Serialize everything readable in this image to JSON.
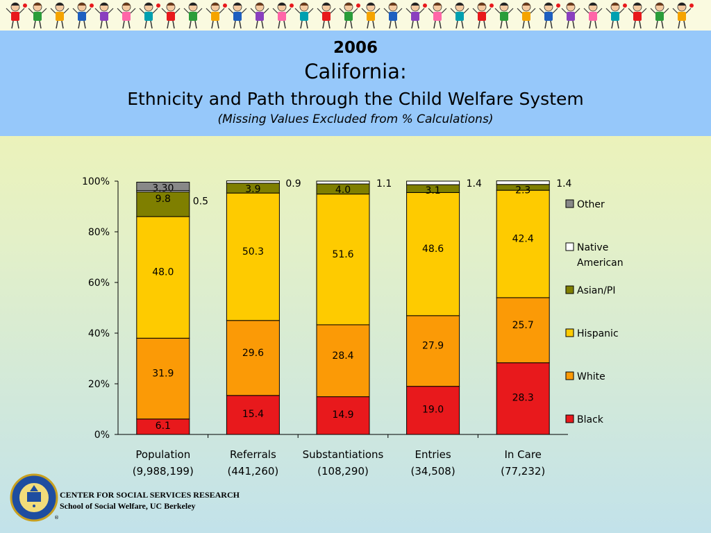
{
  "header": {
    "year": "2006",
    "state": "California:",
    "title": "Ethnicity and Path through the Child Welfare System",
    "subtitle": "(Missing Values Excluded from % Calculations)"
  },
  "chart_data": {
    "type": "bar",
    "stacked": true,
    "title": "",
    "xlabel": "",
    "ylabel": "",
    "ylim": [
      0,
      100
    ],
    "y_ticks": [
      "0%",
      "20%",
      "40%",
      "60%",
      "80%",
      "100%"
    ],
    "categories": [
      "Population",
      "Referrals",
      "Substantiations",
      "Entries",
      "In Care"
    ],
    "category_counts": [
      "(9,988,199)",
      "(441,260)",
      "(108,290)",
      "(34,508)",
      "(77,232)"
    ],
    "legend_position": "right",
    "series": [
      {
        "name": "Black",
        "color": "#e8191c",
        "values": [
          6.1,
          15.4,
          14.9,
          19.0,
          28.3
        ],
        "labels": [
          "6.1",
          "15.4",
          "14.9",
          "19.0",
          "28.3"
        ]
      },
      {
        "name": "White",
        "color": "#fb9a06",
        "values": [
          31.9,
          29.6,
          28.4,
          27.9,
          25.7
        ],
        "labels": [
          "31.9",
          "29.6",
          "28.4",
          "27.9",
          "25.7"
        ]
      },
      {
        "name": "Hispanic",
        "color": "#fecb00",
        "values": [
          48.0,
          50.3,
          51.6,
          48.6,
          42.4
        ],
        "labels": [
          "48.0",
          "50.3",
          "51.6",
          "48.6",
          "42.4"
        ]
      },
      {
        "name": "Asian/PI",
        "color": "#7f7f00",
        "values": [
          9.8,
          3.9,
          4.0,
          3.1,
          2.3
        ],
        "labels": [
          "9.8",
          "3.9",
          "4.0",
          "3.1",
          "2.3"
        ]
      },
      {
        "name": "Native American",
        "legend_lines": [
          "Native",
          "American"
        ],
        "color": "#ffffff",
        "values": [
          0.5,
          0.9,
          1.1,
          1.4,
          1.4
        ],
        "labels": [
          "0.5",
          "0.9",
          "1.1",
          "1.4",
          "1.4"
        ]
      },
      {
        "name": "Other",
        "color": "#888888",
        "values": [
          3.3,
          0,
          0,
          0,
          0
        ],
        "labels": [
          "3.30",
          "",
          "",
          "",
          ""
        ]
      }
    ]
  },
  "footer": {
    "line1": "CENTER FOR SOCIAL SERVICES RESEARCH",
    "line2": "School of Social Welfare, UC Berkeley",
    "registered": "®"
  }
}
